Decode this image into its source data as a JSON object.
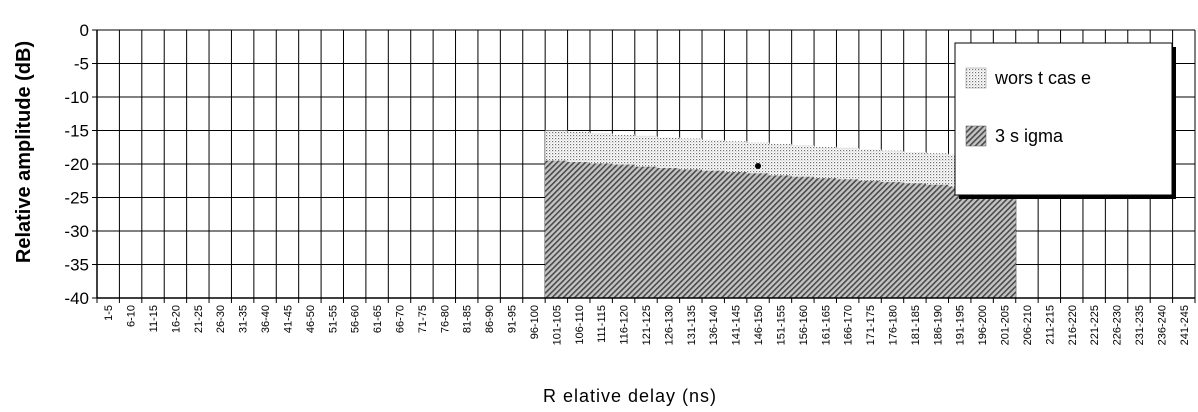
{
  "chart_data": {
    "type": "area",
    "ylabel": "Relative amplitude   (dB)",
    "xlabel": "R elative delay    (ns)",
    "ylim": [
      -40,
      0
    ],
    "yticks": [
      0,
      -5,
      -10,
      -15,
      -20,
      -25,
      -30,
      -35,
      -40
    ],
    "categories": [
      "1-5",
      "6-10",
      "11-15",
      "16-20",
      "21-25",
      "26-30",
      "31-35",
      "36-40",
      "41-45",
      "46-50",
      "51-55",
      "56-60",
      "61-65",
      "66-70",
      "71-75",
      "76-80",
      "81-85",
      "86-90",
      "91-95",
      "96-100",
      "101-105",
      "106-110",
      "111-115",
      "116-120",
      "121-125",
      "126-130",
      "131-135",
      "136-140",
      "141-145",
      "146-150",
      "151-155",
      "156-160",
      "161-165",
      "166-170",
      "171-175",
      "176-180",
      "181-185",
      "186-190",
      "191-195",
      "196-200",
      "201-205",
      "206-210",
      "211-215",
      "216-220",
      "221-225",
      "226-230",
      "231-235",
      "236-240",
      "241-245"
    ],
    "grid": true,
    "legend_position": "top-right",
    "series": [
      {
        "name": "wors t cas e",
        "color": "#d9d9d9",
        "pattern": "dotted",
        "values": [
          null,
          null,
          null,
          null,
          null,
          null,
          null,
          null,
          null,
          null,
          null,
          null,
          null,
          null,
          null,
          null,
          null,
          null,
          null,
          null,
          -15,
          -15.2,
          -15.4,
          -15.6,
          -15.8,
          -16,
          -16.2,
          -16.4,
          -16.6,
          -16.8,
          -17,
          -17.2,
          -17.4,
          -17.6,
          -17.8,
          -18,
          -18.2,
          -18.4,
          -18.6,
          -18.8,
          -19,
          null,
          null,
          null,
          null,
          null,
          null,
          null,
          null
        ]
      },
      {
        "name": "3 s igma",
        "color": "#8a8a8a",
        "pattern": "hatched",
        "values": [
          null,
          null,
          null,
          null,
          null,
          null,
          null,
          null,
          null,
          null,
          null,
          null,
          null,
          null,
          null,
          null,
          null,
          null,
          null,
          null,
          -19.5,
          -19.7,
          -19.9,
          -20.1,
          -20.4,
          -20.6,
          -20.8,
          -21,
          -21.2,
          -21.4,
          -21.7,
          -21.9,
          -22.1,
          -22.3,
          -22.5,
          -22.7,
          -22.9,
          -23.1,
          -23.4,
          -23.6,
          -24.5,
          null,
          null,
          null,
          null,
          null,
          null,
          null,
          null
        ]
      }
    ]
  }
}
